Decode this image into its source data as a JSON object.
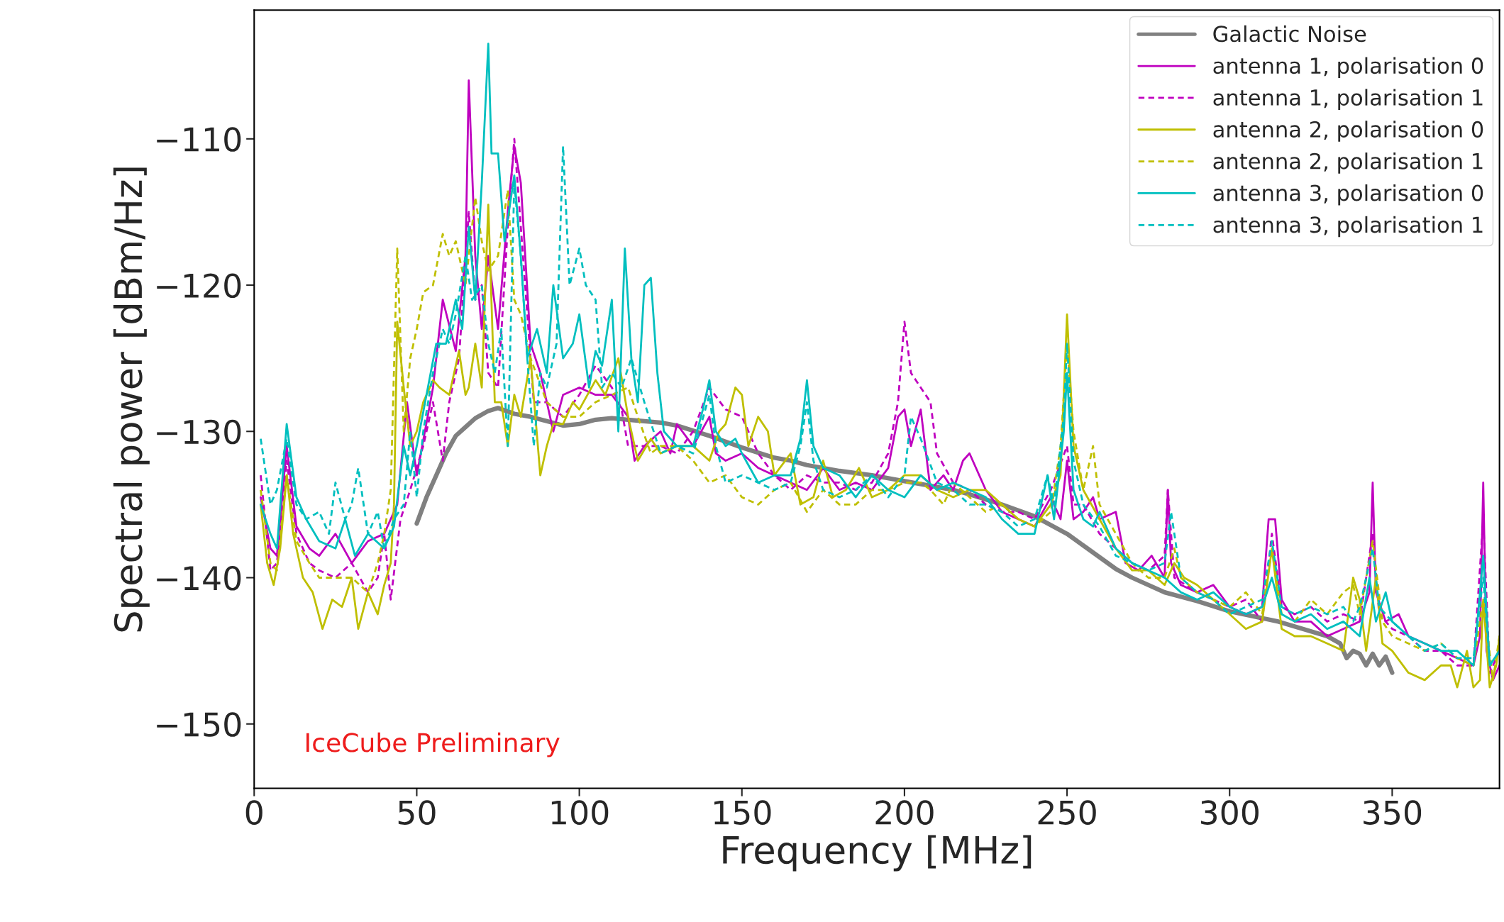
{
  "chart_data": {
    "type": "line",
    "xlabel": "Frequency [MHz]",
    "ylabel": "Spectral power [dBm/Hz]",
    "xlim": [
      0,
      383
    ],
    "ylim": [
      -154.4,
      -101.2
    ],
    "xticks": [
      0,
      50,
      100,
      150,
      200,
      250,
      300,
      350
    ],
    "yticks": [
      {
        "value": -150,
        "label": "−150"
      },
      {
        "value": -140,
        "label": "−140"
      },
      {
        "value": -130,
        "label": "−130"
      },
      {
        "value": -120,
        "label": "−120"
      },
      {
        "value": -110,
        "label": "−110"
      }
    ],
    "grid": false,
    "legend": "top right",
    "marker": "none",
    "annotations": [
      "IceCube Preliminary"
    ],
    "series": [
      {
        "name": "Galactic Noise",
        "color": "#808080",
        "line_style": "solid",
        "x": [
          50,
          53,
          56,
          59,
          62,
          65,
          68,
          72,
          75,
          80,
          85,
          90,
          95,
          100,
          105,
          110,
          115,
          120,
          125,
          130,
          140,
          150,
          160,
          165,
          170,
          180,
          190,
          200,
          210,
          215,
          220,
          230,
          240,
          250,
          255,
          260,
          265,
          270,
          280,
          290,
          300,
          315,
          330,
          334,
          336,
          338,
          340,
          342,
          344,
          346,
          348,
          350
        ],
        "values": [
          -136.3,
          -134.5,
          -133,
          -131.5,
          -130.3,
          -129.7,
          -129.1,
          -128.6,
          -128.4,
          -128.8,
          -129,
          -129.3,
          -129.6,
          -129.5,
          -129.2,
          -129.1,
          -129.2,
          -129.3,
          -129.4,
          -129.6,
          -130.3,
          -131.1,
          -131.8,
          -132,
          -132.3,
          -132.7,
          -133,
          -133.4,
          -133.8,
          -134,
          -134.3,
          -135,
          -135.8,
          -137,
          -137.8,
          -138.6,
          -139.4,
          -140,
          -141,
          -141.6,
          -142.3,
          -143,
          -144,
          -144.5,
          -145.5,
          -145,
          -145.2,
          -146,
          -145.2,
          -146,
          -145.4,
          -146.5
        ]
      },
      {
        "name": "antenna 1, polarisation 0",
        "color": "#bf00bf",
        "line_style": "solid",
        "x": [
          2,
          5,
          7,
          10,
          13,
          17,
          20,
          25,
          30,
          35,
          40,
          44,
          47,
          50,
          55,
          58,
          62,
          65,
          66,
          68,
          70,
          72,
          75,
          78,
          80,
          82,
          85,
          88,
          92,
          95,
          100,
          105,
          110,
          115,
          117,
          120,
          125,
          128,
          130,
          135,
          140,
          142,
          145,
          150,
          155,
          160,
          165,
          170,
          175,
          180,
          185,
          190,
          195,
          198,
          200,
          202,
          205,
          208,
          212,
          215,
          218,
          220,
          225,
          230,
          235,
          240,
          245,
          248,
          250,
          252,
          255,
          258,
          260,
          265,
          268,
          272,
          276,
          280,
          281,
          282,
          285,
          290,
          295,
          300,
          305,
          310,
          312,
          314,
          316,
          320,
          325,
          330,
          335,
          340,
          343,
          344,
          345,
          348,
          352,
          355,
          360,
          365,
          370,
          375,
          377,
          378,
          379,
          381,
          383
        ],
        "values": [
          -134.5,
          -138,
          -138.5,
          -131,
          -136.5,
          -138,
          -138.5,
          -137,
          -139,
          -137.5,
          -137,
          -135,
          -128,
          -133,
          -127,
          -121,
          -124.5,
          -118,
          -106,
          -118,
          -123,
          -118,
          -123,
          -115,
          -110.5,
          -113,
          -124,
          -126,
          -130,
          -127.5,
          -127,
          -127.5,
          -127.5,
          -129,
          -132,
          -131,
          -130,
          -131.5,
          -129.5,
          -131,
          -129,
          -131.5,
          -132,
          -131.5,
          -132.5,
          -133,
          -133.5,
          -134,
          -132.5,
          -134,
          -133.5,
          -134,
          -132.5,
          -129,
          -128.5,
          -131,
          -128.5,
          -134,
          -133,
          -134,
          -132,
          -131.5,
          -134,
          -135.5,
          -136,
          -136.5,
          -134.5,
          -136,
          -132,
          -136,
          -135.5,
          -134.5,
          -136,
          -135.5,
          -139,
          -139.5,
          -138.5,
          -140,
          -134,
          -139,
          -140.5,
          -141,
          -140.5,
          -142,
          -142.5,
          -142,
          -136,
          -136,
          -141.5,
          -143,
          -143,
          -144,
          -143.5,
          -143,
          -141,
          -133.5,
          -141,
          -143,
          -142.5,
          -144,
          -144.5,
          -145,
          -145.5,
          -146,
          -144,
          -133.5,
          -145,
          -147,
          -146
        ]
      },
      {
        "name": "antenna 1, polarisation 1",
        "color": "#bf00bf",
        "line_style": "dashed",
        "x": [
          2,
          5,
          7,
          10,
          13,
          17,
          20,
          25,
          30,
          35,
          38,
          40,
          42,
          45,
          48,
          52,
          55,
          58,
          60,
          63,
          66,
          68,
          70,
          72,
          75,
          78,
          80,
          82,
          84,
          86,
          90,
          95,
          100,
          105,
          110,
          113,
          115,
          120,
          125,
          130,
          135,
          140,
          145,
          150,
          155,
          160,
          165,
          170,
          175,
          180,
          185,
          190,
          195,
          198,
          200,
          202,
          205,
          208,
          210,
          215,
          220,
          225,
          230,
          235,
          240,
          245,
          250,
          252,
          255,
          260,
          265,
          270,
          275,
          280,
          281,
          283,
          290,
          300,
          305,
          310,
          313,
          316,
          320,
          325,
          330,
          335,
          340,
          344,
          346,
          350,
          355,
          360,
          365,
          370,
          375,
          378,
          380,
          383
        ],
        "values": [
          -133,
          -139.5,
          -139,
          -132,
          -137,
          -139,
          -139.5,
          -140,
          -139,
          -141,
          -140,
          -137,
          -141.5,
          -136,
          -134,
          -131,
          -128,
          -132,
          -128,
          -125,
          -115,
          -121,
          -120,
          -126,
          -127,
          -116,
          -110,
          -116,
          -122,
          -128,
          -128,
          -129,
          -127.5,
          -125.5,
          -127,
          -128.5,
          -131,
          -131,
          -131,
          -131.5,
          -130,
          -127,
          -128.5,
          -129,
          -131.5,
          -133,
          -134,
          -133,
          -133.5,
          -133.5,
          -134,
          -133.5,
          -131.5,
          -128,
          -122.5,
          -126,
          -127,
          -128,
          -131.5,
          -133.5,
          -134,
          -135,
          -135.5,
          -135.5,
          -136,
          -134,
          -131,
          -135,
          -135,
          -137,
          -138,
          -139,
          -139.5,
          -138.5,
          -134,
          -140,
          -141,
          -142,
          -141.5,
          -143,
          -137,
          -142,
          -142.5,
          -142,
          -143,
          -142.5,
          -143,
          -137,
          -142.5,
          -143.5,
          -144,
          -145,
          -145,
          -146,
          -146,
          -136,
          -146.5,
          -145
        ]
      },
      {
        "name": "antenna 2, polarisation 0",
        "color": "#bfbf00",
        "line_style": "solid",
        "x": [
          2,
          4,
          6,
          8,
          10,
          12,
          15,
          18,
          21,
          24,
          27,
          30,
          32,
          35,
          38,
          40,
          42,
          43,
          44,
          46,
          48,
          50,
          52,
          55,
          57,
          60,
          63,
          65,
          66,
          68,
          70,
          72,
          74,
          76,
          78,
          80,
          82,
          85,
          88,
          90,
          92,
          95,
          98,
          100,
          105,
          108,
          112,
          115,
          118,
          122,
          125,
          130,
          135,
          140,
          143,
          145,
          148,
          150,
          152,
          155,
          158,
          160,
          165,
          168,
          172,
          175,
          178,
          182,
          186,
          190,
          195,
          200,
          205,
          210,
          215,
          220,
          225,
          230,
          235,
          240,
          245,
          248,
          250,
          252,
          255,
          260,
          265,
          270,
          275,
          280,
          283,
          286,
          290,
          295,
          300,
          305,
          310,
          313,
          316,
          320,
          325,
          330,
          335,
          338,
          340,
          342,
          345,
          347,
          350,
          355,
          360,
          365,
          368,
          370,
          373,
          375,
          377,
          378,
          380,
          382,
          383
        ],
        "values": [
          -135,
          -139,
          -140.5,
          -138,
          -133,
          -137,
          -140,
          -141,
          -143.5,
          -141.5,
          -142,
          -140,
          -143.5,
          -141,
          -142.5,
          -140.5,
          -139,
          -135,
          -122.5,
          -127,
          -131,
          -130,
          -128,
          -126.5,
          -127,
          -127.5,
          -124.5,
          -127.5,
          -127,
          -124,
          -127,
          -114.5,
          -128,
          -128,
          -131,
          -127.5,
          -129,
          -125,
          -133,
          -131,
          -129.5,
          -129.5,
          -128,
          -128.5,
          -126.5,
          -127.5,
          -125,
          -129,
          -132,
          -130.5,
          -131.5,
          -131,
          -131,
          -132,
          -130,
          -129.5,
          -127,
          -127.5,
          -131,
          -129,
          -130,
          -133,
          -131.5,
          -135,
          -134.5,
          -132,
          -134.5,
          -134,
          -132.5,
          -134.5,
          -134,
          -133,
          -133,
          -134,
          -134.5,
          -134,
          -134,
          -135,
          -136,
          -136.5,
          -135,
          -133,
          -122,
          -131,
          -134,
          -136,
          -138,
          -139.5,
          -139.5,
          -140.5,
          -139,
          -140,
          -140.5,
          -141.5,
          -142.5,
          -143.5,
          -143,
          -138,
          -143.5,
          -144,
          -144,
          -144.5,
          -145,
          -140,
          -141.5,
          -145,
          -140,
          -144.5,
          -145,
          -146.5,
          -147,
          -146,
          -146,
          -147.5,
          -145,
          -147.5,
          -147,
          -141.5,
          -147.5,
          -146,
          -144
        ]
      },
      {
        "name": "antenna 2, polarisation 1",
        "color": "#bfbf00",
        "line_style": "dashed",
        "x": [
          2,
          5,
          7,
          10,
          13,
          17,
          20,
          25,
          30,
          35,
          38,
          40,
          42,
          44,
          46,
          48,
          50,
          52,
          55,
          58,
          60,
          62,
          65,
          68,
          70,
          72,
          75,
          78,
          80,
          82,
          85,
          90,
          95,
          100,
          105,
          110,
          115,
          118,
          122,
          125,
          130,
          135,
          140,
          145,
          150,
          155,
          160,
          165,
          170,
          175,
          180,
          185,
          190,
          195,
          200,
          205,
          208,
          212,
          215,
          220,
          225,
          230,
          235,
          240,
          245,
          248,
          250,
          252,
          255,
          258,
          260,
          265,
          270,
          275,
          280,
          283,
          285,
          290,
          300,
          305,
          310,
          313,
          316,
          320,
          325,
          330,
          335,
          338,
          340,
          344,
          347,
          350,
          355,
          360,
          365,
          370,
          375,
          378,
          381,
          383
        ],
        "values": [
          -134,
          -139,
          -139.5,
          -133,
          -137.5,
          -139,
          -140,
          -140,
          -140,
          -141,
          -139,
          -137,
          -134,
          -117.5,
          -130,
          -125,
          -123,
          -120.5,
          -120,
          -116.5,
          -118,
          -117,
          -120,
          -114,
          -117,
          -119,
          -118,
          -113.5,
          -121,
          -122,
          -125,
          -128,
          -129,
          -129,
          -128,
          -127.5,
          -127,
          -129,
          -131.5,
          -131,
          -131,
          -132,
          -133.5,
          -133,
          -134.5,
          -135,
          -134,
          -133.5,
          -135.5,
          -134,
          -135,
          -135,
          -134,
          -134,
          -133.5,
          -133.5,
          -134,
          -135,
          -133.5,
          -134.5,
          -135.5,
          -135,
          -136,
          -136.5,
          -135.5,
          -131,
          -124,
          -130,
          -134,
          -131,
          -135,
          -137,
          -139,
          -140,
          -140,
          -138,
          -140,
          -141,
          -142,
          -141,
          -142.5,
          -138,
          -142.5,
          -143,
          -141.5,
          -142.5,
          -141,
          -140.5,
          -142.5,
          -137.5,
          -143,
          -144,
          -144.5,
          -145,
          -144.5,
          -145.5,
          -146,
          -141.5,
          -147,
          -144
        ]
      },
      {
        "name": "antenna 3, polarisation 0",
        "color": "#00bfbf",
        "line_style": "solid",
        "x": [
          2,
          5,
          7,
          10,
          13,
          16,
          20,
          25,
          28,
          31,
          35,
          40,
          43,
          46,
          48,
          50,
          53,
          56,
          59,
          62,
          64,
          66,
          68,
          70,
          72,
          73,
          75,
          77,
          80,
          82,
          84,
          87,
          90,
          92,
          95,
          98,
          100,
          103,
          105,
          107,
          110,
          112,
          114,
          116,
          118,
          120,
          122,
          124,
          126,
          130,
          135,
          138,
          140,
          142,
          145,
          148,
          150,
          155,
          160,
          165,
          168,
          170,
          172,
          175,
          180,
          185,
          190,
          195,
          200,
          205,
          210,
          215,
          220,
          225,
          230,
          235,
          240,
          244,
          246,
          249,
          250,
          252,
          255,
          258,
          260,
          265,
          270,
          275,
          280,
          285,
          290,
          295,
          300,
          305,
          310,
          313,
          316,
          320,
          325,
          330,
          335,
          340,
          343,
          345,
          348,
          350,
          355,
          360,
          365,
          370,
          375,
          378,
          380,
          383
        ],
        "values": [
          -135,
          -137,
          -138,
          -129.5,
          -134.5,
          -136,
          -137.5,
          -138,
          -136,
          -138.5,
          -137,
          -138,
          -136.5,
          -131,
          -133,
          -131,
          -127.5,
          -124,
          -124,
          -121,
          -123,
          -116,
          -121,
          -113,
          -103.5,
          -111,
          -111,
          -117,
          -112.5,
          -118,
          -125,
          -123,
          -126,
          -120,
          -125,
          -124,
          -122,
          -127,
          -124.5,
          -125.5,
          -121,
          -130,
          -117.5,
          -125,
          -128,
          -120,
          -119.5,
          -126,
          -130,
          -131,
          -131,
          -128.5,
          -126.5,
          -130,
          -131,
          -130.5,
          -131.5,
          -133.5,
          -133,
          -133,
          -130.5,
          -126.5,
          -131,
          -132.5,
          -133,
          -134.5,
          -133,
          -134,
          -134.5,
          -133,
          -134,
          -133.5,
          -134,
          -134.5,
          -136,
          -137,
          -137,
          -133,
          -136,
          -130,
          -126,
          -134,
          -136,
          -136.5,
          -135.5,
          -138,
          -139,
          -139.5,
          -140,
          -141,
          -141.5,
          -141,
          -142,
          -142.5,
          -142,
          -140,
          -142.5,
          -143,
          -142.5,
          -143.5,
          -143,
          -144,
          -140,
          -143,
          -141,
          -143,
          -144,
          -144.5,
          -145,
          -145,
          -146,
          -138.5,
          -146,
          -145
        ]
      },
      {
        "name": "antenna 3, polarisation 1",
        "color": "#00bfbf",
        "line_style": "dashed",
        "x": [
          2,
          5,
          7,
          10,
          13,
          16,
          20,
          23,
          25,
          28,
          30,
          32,
          35,
          38,
          40,
          43,
          46,
          48,
          50,
          52,
          55,
          58,
          60,
          62,
          65,
          67,
          70,
          72,
          74,
          76,
          78,
          80,
          82,
          84,
          86,
          88,
          90,
          93,
          95,
          97,
          100,
          102,
          105,
          107,
          110,
          113,
          116,
          120,
          125,
          130,
          135,
          140,
          142,
          145,
          150,
          155,
          160,
          165,
          168,
          170,
          172,
          175,
          180,
          185,
          190,
          195,
          200,
          202,
          205,
          210,
          215,
          220,
          225,
          230,
          235,
          240,
          244,
          246,
          249,
          250,
          252,
          255,
          260,
          265,
          270,
          275,
          280,
          282,
          285,
          290,
          295,
          300,
          305,
          310,
          313,
          316,
          320,
          325,
          330,
          335,
          338,
          340,
          344,
          346,
          350,
          355,
          360,
          365,
          370,
          375,
          378,
          380,
          383
        ],
        "values": [
          -130.5,
          -135,
          -134,
          -130.5,
          -135,
          -136,
          -135.5,
          -137,
          -133.5,
          -136,
          -135,
          -132.5,
          -137,
          -135.5,
          -138,
          -136,
          -135,
          -130,
          -134.5,
          -130,
          -126,
          -123,
          -124,
          -122,
          -118,
          -121,
          -120,
          -124,
          -126,
          -123,
          -131,
          -113,
          -118,
          -125,
          -131,
          -126,
          -127,
          -124,
          -110.5,
          -120,
          -117.5,
          -120,
          -121,
          -127,
          -126,
          -127,
          -125,
          -128,
          -131.5,
          -131,
          -131.5,
          -127.5,
          -131,
          -133.5,
          -133,
          -133.5,
          -134,
          -133.5,
          -131,
          -128,
          -132,
          -134,
          -134.5,
          -134,
          -133,
          -134.5,
          -133,
          -129,
          -130.5,
          -133.5,
          -134,
          -135,
          -135,
          -135.5,
          -136.5,
          -136,
          -133,
          -135,
          -129,
          -124,
          -132,
          -135,
          -136.5,
          -138.5,
          -139,
          -139.5,
          -139,
          -135.5,
          -140,
          -141,
          -141.5,
          -142.5,
          -142,
          -141.5,
          -137.5,
          -142,
          -142.5,
          -142,
          -142.5,
          -142,
          -143,
          -142,
          -138,
          -142,
          -143,
          -144,
          -145,
          -144.5,
          -145.5,
          -145.5,
          -140,
          -146,
          -145
        ]
      }
    ]
  }
}
